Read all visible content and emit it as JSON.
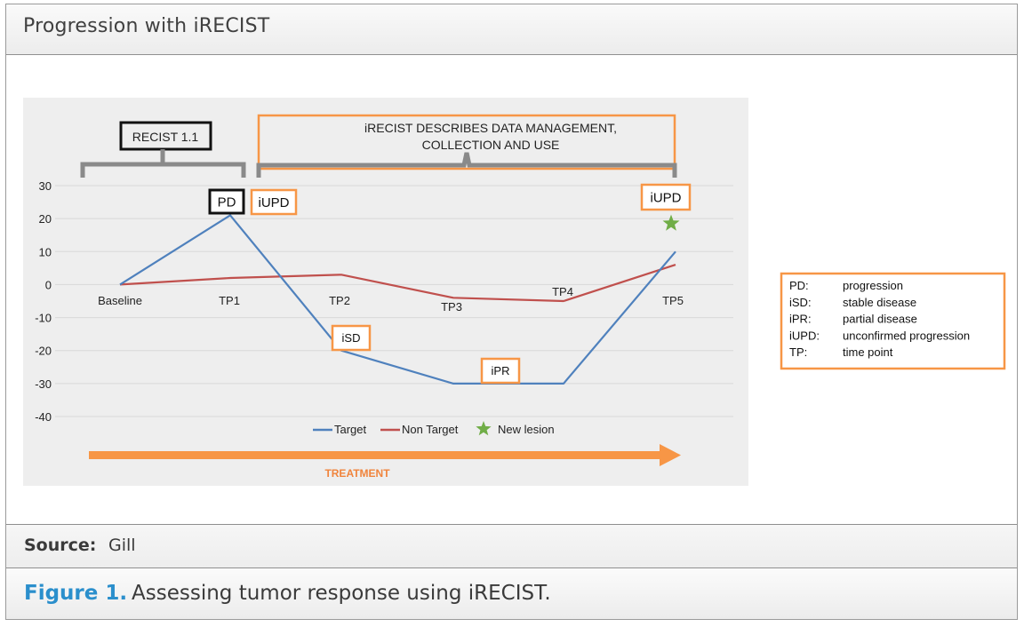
{
  "header": {
    "title": "Progression with iRECIST"
  },
  "source": {
    "label": "Source:",
    "value": "Gill"
  },
  "caption": {
    "label": "Figure 1.",
    "text": "Assessing tumor response using iRECIST."
  },
  "brackets": {
    "recist": "RECIST 1.1",
    "irecist_line1": "iRECIST DESCRIBES DATA MANAGEMENT,",
    "irecist_line2": "COLLECTION AND USE"
  },
  "treatment_label": "TREATMENT",
  "glossary": [
    {
      "term": "PD:",
      "desc": "progression"
    },
    {
      "term": "iSD:",
      "desc": "stable disease"
    },
    {
      "term": "iPR:",
      "desc": "partial disease"
    },
    {
      "term": "iUPD:",
      "desc": "unconfirmed progression"
    },
    {
      "term": "TP:",
      "desc": "time point"
    }
  ],
  "colors": {
    "target": "#4f81bd",
    "non_target": "#c0504d",
    "new_lesion": "#70ad47",
    "orange": "#f79646",
    "background": "#eeeeee"
  },
  "chart_data": {
    "type": "line",
    "categories": [
      "Baseline",
      "TP1",
      "TP2",
      "TP3",
      "TP4",
      "TP5"
    ],
    "ylim": [
      -40,
      30
    ],
    "yticks": [
      30,
      20,
      10,
      0,
      -10,
      -20,
      -30,
      -40
    ],
    "series": [
      {
        "name": "Target",
        "values": [
          0,
          21,
          -20,
          -30,
          -30,
          10
        ],
        "color": "#4f81bd"
      },
      {
        "name": "Non Target",
        "values": [
          0,
          2,
          3,
          -4,
          -5,
          6
        ],
        "color": "#c0504d"
      }
    ],
    "new_lesion": {
      "name": "New lesion",
      "category": "TP5",
      "value": 18
    },
    "annotations": [
      {
        "text": "PD",
        "category": "TP1",
        "value": 21,
        "style": "black"
      },
      {
        "text": "iUPD",
        "category": "TP1",
        "value": 21,
        "style": "orange"
      },
      {
        "text": "iSD",
        "category": "TP2",
        "value": -20,
        "style": "orange"
      },
      {
        "text": "iPR",
        "category": "TP3",
        "value": -30,
        "style": "orange"
      },
      {
        "text": "iUPD",
        "category": "TP5",
        "value": 10,
        "style": "orange"
      }
    ],
    "legend": "bottom-center",
    "grid": true
  }
}
